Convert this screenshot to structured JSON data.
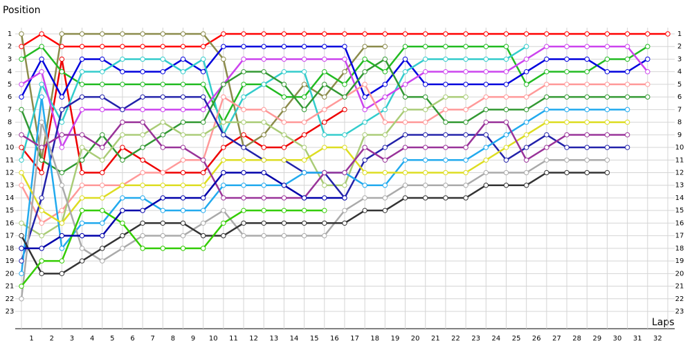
{
  "chart_data": {
    "type": "line",
    "y_label": "Position",
    "x_label": "Laps",
    "ylim": [
      1,
      23
    ],
    "y_inverted": true,
    "yticks": [
      1,
      2,
      3,
      4,
      5,
      6,
      7,
      8,
      9,
      10,
      11,
      12,
      13,
      14,
      15,
      16,
      17,
      18,
      19,
      20,
      21,
      22,
      23
    ],
    "xlim": [
      0,
      32
    ],
    "xticks": [
      1,
      2,
      3,
      4,
      5,
      6,
      7,
      8,
      9,
      10,
      11,
      12,
      13,
      14,
      15,
      16,
      17,
      18,
      19,
      20,
      21,
      22,
      23,
      24,
      25,
      26,
      27,
      28,
      29,
      30,
      31,
      32
    ],
    "grid": true,
    "series": [
      {
        "color": "#ff0000",
        "values": [
          2,
          1,
          2,
          2,
          2,
          2,
          2,
          2,
          2,
          2,
          1,
          1,
          1,
          1,
          1,
          1,
          1,
          1,
          1,
          1,
          1,
          1,
          1,
          1,
          1,
          1,
          1,
          1,
          1,
          1,
          1,
          1,
          1
        ]
      },
      {
        "color": "#ee0000",
        "values": [
          10,
          12,
          3,
          12,
          12,
          10,
          11,
          12,
          12,
          12,
          10,
          9,
          10,
          10,
          9,
          8,
          7,
          null,
          null,
          null,
          null,
          null,
          null,
          null,
          null,
          null,
          null,
          null,
          null,
          null,
          null,
          null,
          null
        ]
      },
      {
        "color": "#8b8b4b",
        "values": [
          1,
          11,
          1,
          1,
          1,
          1,
          1,
          1,
          1,
          1,
          3,
          10,
          9,
          7,
          5,
          6,
          4,
          2,
          2,
          null,
          null,
          null,
          null,
          null,
          null,
          null,
          null,
          null,
          null,
          null,
          null,
          null,
          null
        ]
      },
      {
        "color": "#22bb22",
        "values": [
          3,
          2,
          4,
          5,
          5,
          5,
          5,
          5,
          5,
          5,
          8,
          5,
          5,
          6,
          6,
          4,
          5,
          3,
          4,
          2,
          2,
          2,
          2,
          2,
          2,
          5,
          4,
          4,
          4,
          3,
          3,
          2,
          null
        ]
      },
      {
        "color": "#0000dd",
        "values": [
          6,
          3,
          6,
          3,
          3,
          4,
          4,
          4,
          3,
          4,
          2,
          2,
          2,
          2,
          2,
          2,
          2,
          6,
          5,
          3,
          5,
          5,
          5,
          5,
          5,
          4,
          3,
          3,
          3,
          4,
          4,
          3,
          null
        ]
      },
      {
        "color": "#33cccc",
        "values": [
          11,
          5,
          8,
          4,
          4,
          3,
          3,
          3,
          4,
          3,
          9,
          6,
          5,
          4,
          4,
          9,
          9,
          8,
          7,
          4,
          3,
          3,
          3,
          3,
          3,
          2,
          null,
          null,
          null,
          null,
          null,
          null,
          null
        ]
      },
      {
        "color": "#cc44ee",
        "values": [
          5,
          4,
          10,
          7,
          7,
          7,
          7,
          7,
          7,
          7,
          5,
          3,
          3,
          3,
          3,
          3,
          3,
          7,
          6,
          5,
          4,
          4,
          4,
          4,
          4,
          3,
          2,
          2,
          2,
          2,
          2,
          4,
          null
        ]
      },
      {
        "color": "#ff9999",
        "values": [
          13,
          16,
          15,
          13,
          13,
          13,
          12,
          12,
          11,
          11,
          6,
          7,
          7,
          8,
          8,
          7,
          6,
          5,
          8,
          8,
          8,
          7,
          7,
          6,
          6,
          6,
          5,
          5,
          5,
          5,
          5,
          5,
          null
        ]
      },
      {
        "color": "#339933",
        "values": [
          7,
          11,
          12,
          11,
          9,
          11,
          10,
          9,
          8,
          8,
          5,
          4,
          4,
          5,
          7,
          5,
          6,
          4,
          3,
          6,
          6,
          8,
          8,
          7,
          7,
          7,
          6,
          6,
          6,
          6,
          6,
          6,
          null
        ]
      },
      {
        "color": "#aacc77",
        "values": [
          16,
          17,
          16,
          10,
          11,
          9,
          9,
          8,
          9,
          9,
          8,
          8,
          8,
          9,
          10,
          13,
          13,
          9,
          9,
          7,
          7,
          6,
          6,
          null,
          null,
          null,
          null,
          null,
          null,
          null,
          null,
          null,
          null
        ]
      },
      {
        "color": "#2222aa",
        "values": [
          19,
          14,
          7,
          6,
          6,
          7,
          6,
          6,
          6,
          6,
          9,
          10,
          11,
          11,
          12,
          12,
          14,
          11,
          10,
          9,
          9,
          9,
          9,
          9,
          11,
          10,
          9,
          10,
          10,
          10,
          10,
          null,
          null
        ]
      },
      {
        "color": "#22aaee",
        "values": [
          20,
          6,
          18,
          16,
          16,
          14,
          14,
          15,
          15,
          15,
          13,
          13,
          13,
          13,
          12,
          12,
          12,
          13,
          13,
          11,
          11,
          11,
          11,
          10,
          9,
          8,
          7,
          7,
          7,
          7,
          7,
          null,
          null
        ]
      },
      {
        "color": "#dddd22",
        "values": [
          12,
          15,
          16,
          14,
          14,
          13,
          13,
          13,
          13,
          13,
          11,
          11,
          11,
          11,
          11,
          10,
          10,
          12,
          12,
          12,
          12,
          12,
          12,
          11,
          10,
          9,
          8,
          8,
          8,
          8,
          8,
          null,
          null
        ]
      },
      {
        "color": "#993399",
        "values": [
          9,
          10,
          9,
          9,
          10,
          8,
          8,
          10,
          10,
          11,
          14,
          14,
          14,
          14,
          14,
          12,
          12,
          10,
          11,
          10,
          10,
          10,
          10,
          8,
          8,
          11,
          10,
          9,
          9,
          9,
          9,
          null,
          null
        ]
      },
      {
        "color": "#aaaaaa",
        "values": [
          22,
          8,
          13,
          18,
          19,
          18,
          17,
          17,
          17,
          16,
          15,
          17,
          17,
          17,
          17,
          17,
          15,
          14,
          14,
          13,
          13,
          13,
          13,
          12,
          12,
          12,
          11,
          11,
          11,
          11,
          null,
          null,
          null
        ]
      },
      {
        "color": "#333333",
        "values": [
          17,
          20,
          20,
          19,
          18,
          17,
          16,
          16,
          16,
          17,
          17,
          16,
          16,
          16,
          16,
          16,
          16,
          15,
          15,
          14,
          14,
          14,
          14,
          13,
          13,
          13,
          12,
          12,
          12,
          12,
          null,
          null,
          null
        ]
      },
      {
        "color": "#33cc00",
        "values": [
          21,
          19,
          19,
          15,
          15,
          16,
          18,
          18,
          18,
          18,
          16,
          15,
          15,
          15,
          15,
          15,
          null,
          null,
          null,
          null,
          null,
          null,
          null,
          null,
          null,
          null,
          null,
          null,
          null,
          null,
          null,
          null,
          null
        ]
      },
      {
        "color": "#0000aa",
        "values": [
          18,
          18,
          17,
          17,
          17,
          15,
          15,
          14,
          14,
          14,
          12,
          12,
          12,
          13,
          14,
          14,
          14,
          null,
          null,
          null,
          null,
          null,
          null,
          null,
          null,
          null,
          null,
          null,
          null,
          null,
          null,
          null,
          null
        ]
      }
    ]
  }
}
